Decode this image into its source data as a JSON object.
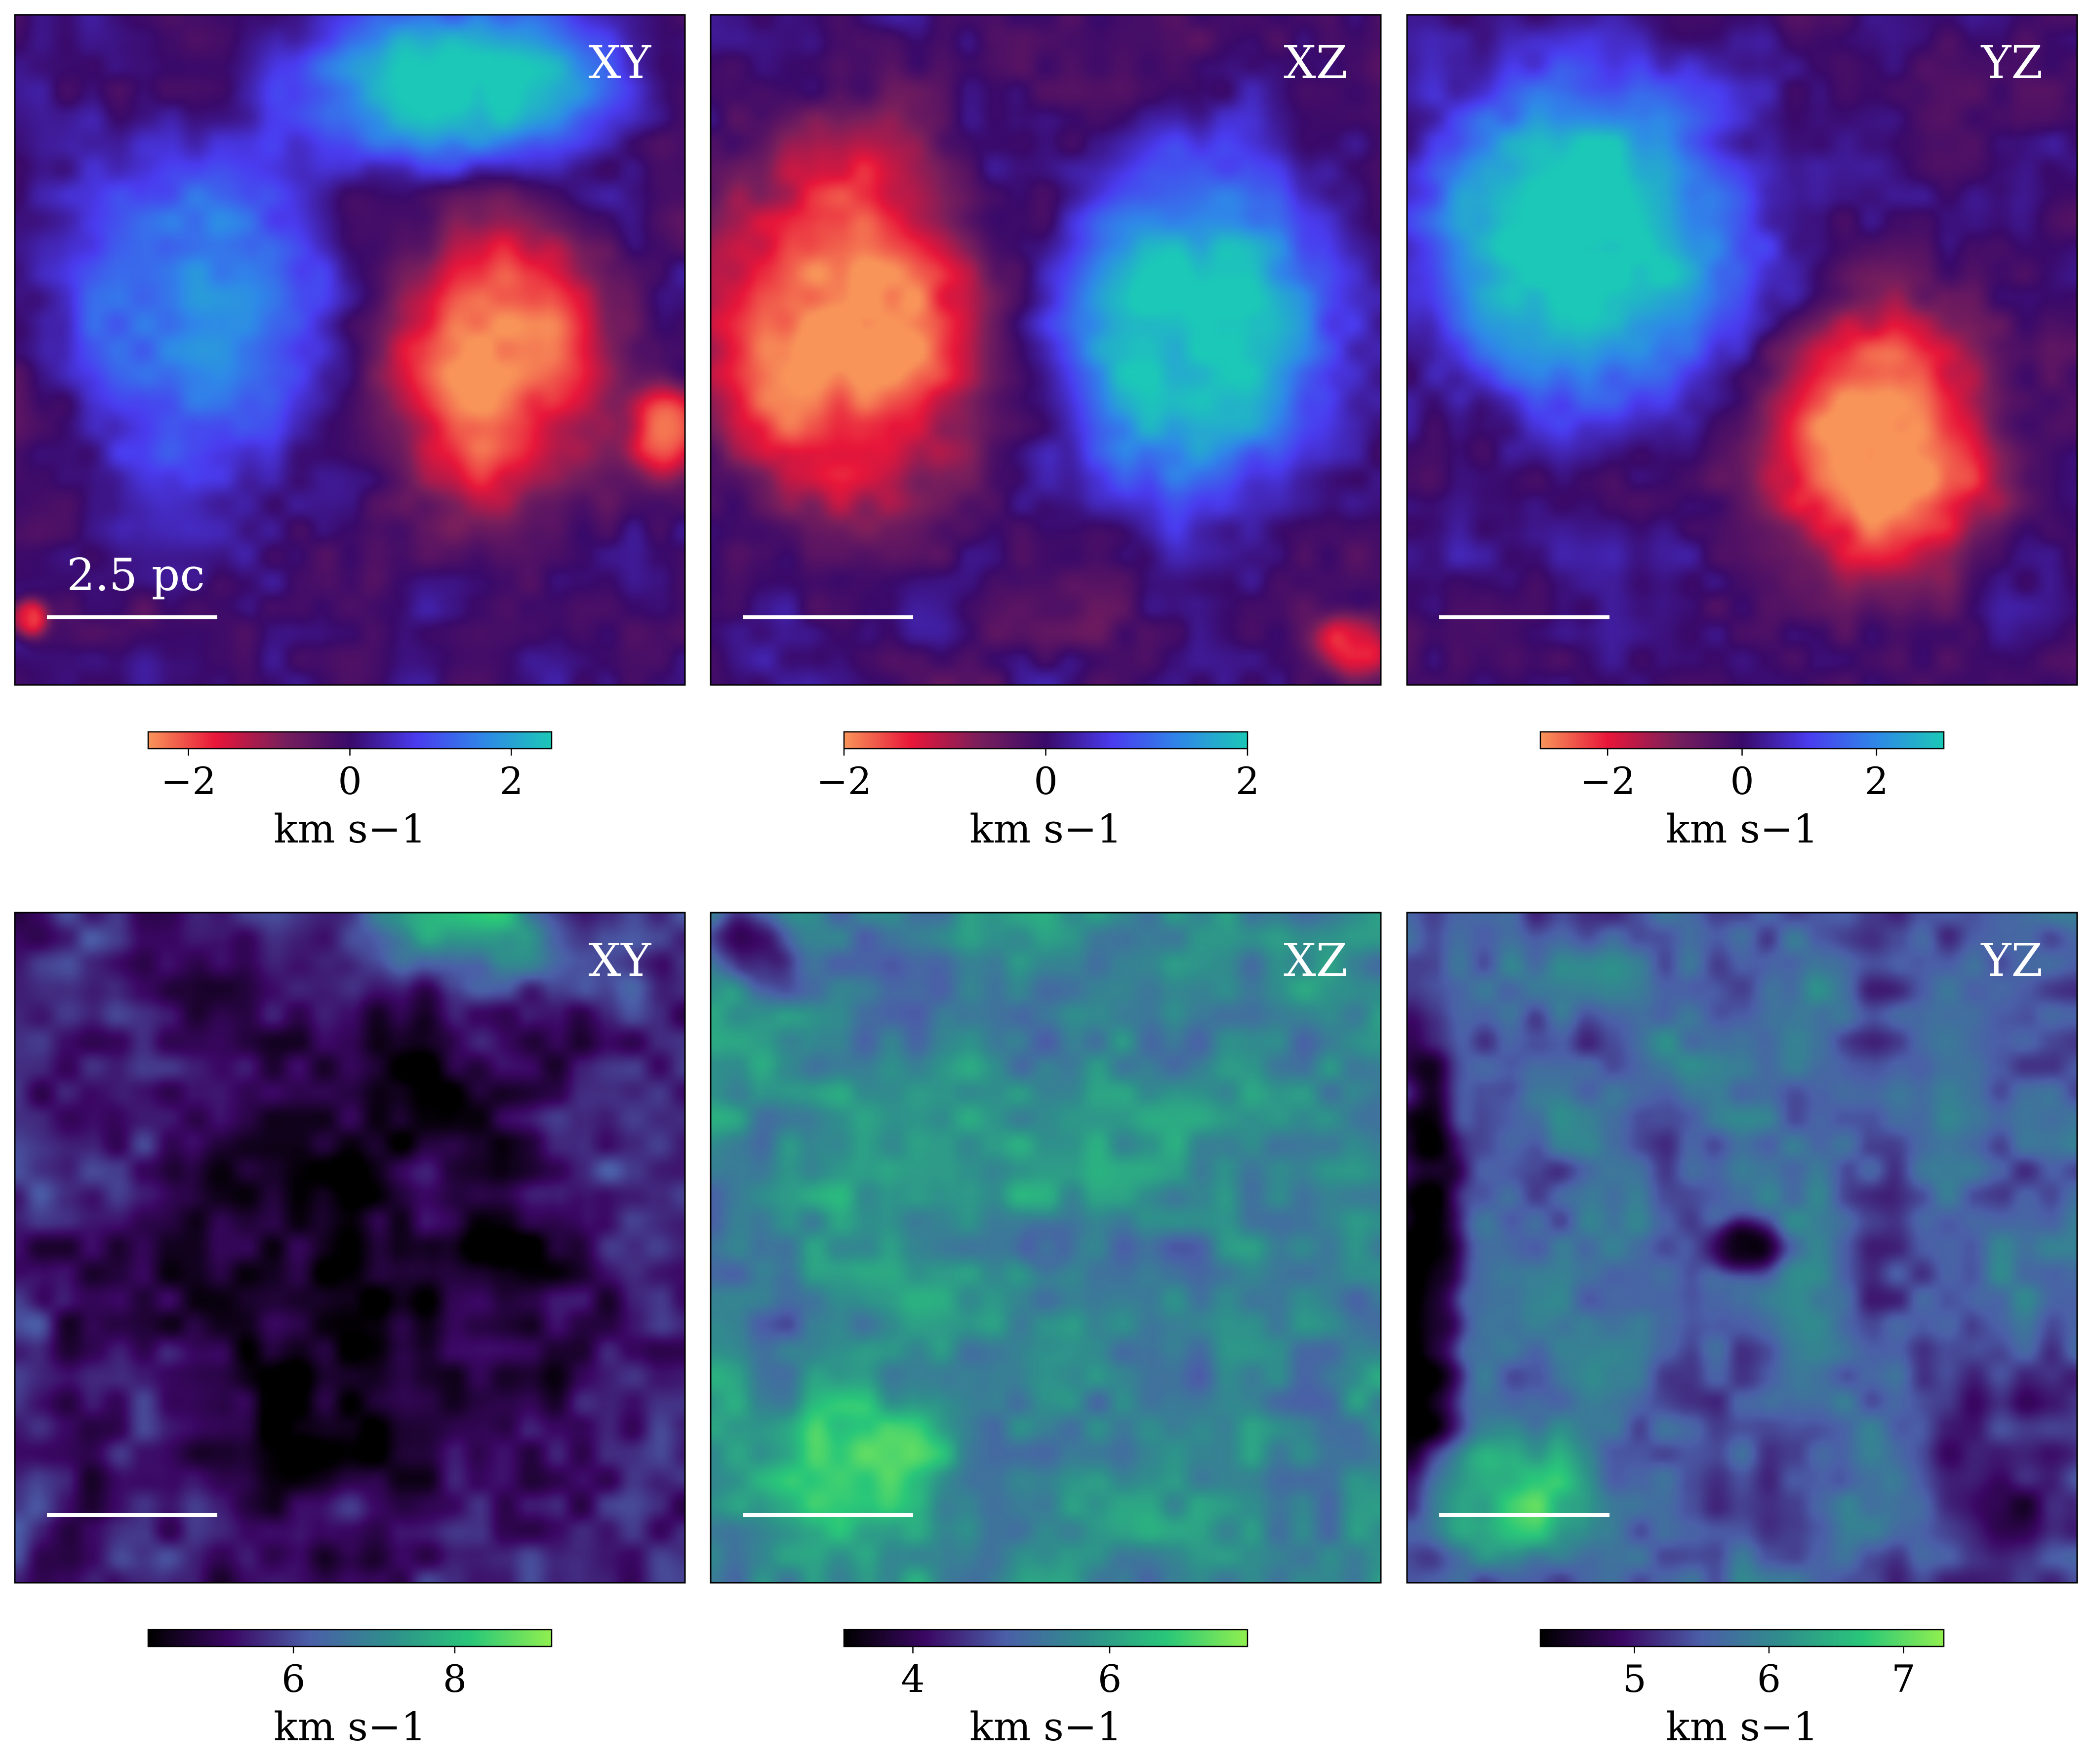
{
  "scale_bar_label": "2.5 pc",
  "chart_data": [
    {
      "type": "heatmap",
      "row": 0,
      "col": 0,
      "projection": "XY",
      "colormap": "diverging",
      "colors": [
        "#f8945a",
        "#e8163a",
        "#7a1f5c",
        "#3a0a6a",
        "#4a3cf0",
        "#2f88e8",
        "#1cc8b8"
      ],
      "clim": [
        -2.5,
        2.5
      ],
      "ticks": [
        -2,
        0,
        2
      ],
      "tick_labels": [
        "−2",
        "0",
        "2"
      ],
      "colorbar_label": "km s−1",
      "scale_bar": true,
      "scale_bar_text": true,
      "blobs": [
        {
          "x": 0.27,
          "y": 0.55,
          "rx": 0.19,
          "ry": 0.29,
          "value": 1.5
        },
        {
          "x": 0.72,
          "y": 0.48,
          "rx": 0.17,
          "ry": 0.23,
          "value": -2.3
        },
        {
          "x": 0.66,
          "y": 0.9,
          "rx": 0.24,
          "ry": 0.12,
          "value": 2.5
        },
        {
          "x": 0.97,
          "y": 0.38,
          "rx": 0.06,
          "ry": 0.07,
          "value": -2.0
        },
        {
          "x": 0.02,
          "y": 0.1,
          "rx": 0.03,
          "ry": 0.03,
          "value": -2.0
        }
      ]
    },
    {
      "type": "heatmap",
      "row": 0,
      "col": 1,
      "projection": "XZ",
      "colormap": "diverging",
      "colors": [
        "#f8945a",
        "#e8163a",
        "#7a1f5c",
        "#3a0a6a",
        "#4a3cf0",
        "#2f88e8",
        "#1cc8b8"
      ],
      "clim": [
        -2.0,
        2.0
      ],
      "ticks": [
        -2,
        0,
        2
      ],
      "tick_labels": [
        "−2",
        "0",
        "2"
      ],
      "colorbar_label": "km s−1",
      "scale_bar": true,
      "scale_bar_text": false,
      "blobs": [
        {
          "x": 0.2,
          "y": 0.53,
          "rx": 0.21,
          "ry": 0.29,
          "value": -2.0
        },
        {
          "x": 0.72,
          "y": 0.53,
          "rx": 0.2,
          "ry": 0.25,
          "value": 2.0
        },
        {
          "x": 0.96,
          "y": 0.06,
          "rx": 0.06,
          "ry": 0.05,
          "value": -1.5
        },
        {
          "x": 0.5,
          "y": 0.1,
          "rx": 0.1,
          "ry": 0.06,
          "value": -0.4
        }
      ]
    },
    {
      "type": "heatmap",
      "row": 0,
      "col": 2,
      "projection": "YZ",
      "colormap": "diverging",
      "colors": [
        "#f8945a",
        "#e8163a",
        "#7a1f5c",
        "#3a0a6a",
        "#4a3cf0",
        "#2f88e8",
        "#1cc8b8"
      ],
      "clim": [
        -3.0,
        3.0
      ],
      "ticks": [
        -2,
        0,
        2
      ],
      "tick_labels": [
        "−2",
        "0",
        "2"
      ],
      "colorbar_label": "km s−1",
      "scale_bar": true,
      "scale_bar_text": false,
      "blobs": [
        {
          "x": 0.27,
          "y": 0.67,
          "rx": 0.25,
          "ry": 0.26,
          "value": 3.0
        },
        {
          "x": 0.71,
          "y": 0.35,
          "rx": 0.18,
          "ry": 0.21,
          "value": -3.0
        }
      ]
    },
    {
      "type": "heatmap",
      "row": 1,
      "col": 0,
      "projection": "XY",
      "colormap": "sequential",
      "colors": [
        "#000000",
        "#3b0764",
        "#4b5fa8",
        "#2f8f8c",
        "#29c77a",
        "#90ef50"
      ],
      "clim": [
        4.2,
        9.2
      ],
      "ticks": [
        6,
        8
      ],
      "tick_labels": [
        "6",
        "8"
      ],
      "colorbar_label": "km s−1",
      "scale_bar": true,
      "scale_bar_text": false,
      "background": 5.7,
      "blobs": [
        {
          "x": 0.66,
          "y": 0.96,
          "rx": 0.16,
          "ry": 0.1,
          "value": 9.2
        },
        {
          "x": 0.52,
          "y": 0.45,
          "rx": 0.4,
          "ry": 0.55,
          "value": 4.6
        },
        {
          "x": 0.5,
          "y": 0.5,
          "rx": 0.05,
          "ry": 0.05,
          "value": 4.2
        }
      ]
    },
    {
      "type": "heatmap",
      "row": 1,
      "col": 1,
      "projection": "XZ",
      "colormap": "sequential",
      "colors": [
        "#000000",
        "#3b0764",
        "#4b5fa8",
        "#2f8f8c",
        "#29c77a",
        "#90ef50"
      ],
      "clim": [
        3.3,
        7.4
      ],
      "ticks": [
        4,
        6
      ],
      "tick_labels": [
        "4",
        "6"
      ],
      "colorbar_label": "km s−1",
      "scale_bar": true,
      "scale_bar_text": false,
      "background": 5.6,
      "blobs": [
        {
          "x": 0.2,
          "y": 0.18,
          "rx": 0.16,
          "ry": 0.12,
          "value": 6.6
        },
        {
          "x": 0.06,
          "y": 0.95,
          "rx": 0.06,
          "ry": 0.06,
          "value": 4.3
        },
        {
          "x": 0.5,
          "y": 0.5,
          "rx": 0.04,
          "ry": 0.04,
          "value": 4.9
        }
      ]
    },
    {
      "type": "heatmap",
      "row": 1,
      "col": 2,
      "projection": "YZ",
      "colormap": "sequential",
      "colors": [
        "#000000",
        "#3b0764",
        "#4b5fa8",
        "#2f8f8c",
        "#29c77a",
        "#90ef50"
      ],
      "clim": [
        4.3,
        7.3
      ],
      "ticks": [
        5,
        6,
        7
      ],
      "tick_labels": [
        "5",
        "6",
        "7"
      ],
      "colorbar_label": "km s−1",
      "scale_bar": true,
      "scale_bar_text": false,
      "background": 5.6,
      "blobs": [
        {
          "x": 0.03,
          "y": 0.45,
          "rx": 0.06,
          "ry": 0.35,
          "value": 4.3
        },
        {
          "x": 0.5,
          "y": 0.5,
          "rx": 0.06,
          "ry": 0.04,
          "value": 4.4
        },
        {
          "x": 0.88,
          "y": 0.2,
          "rx": 0.14,
          "ry": 0.16,
          "value": 4.9
        },
        {
          "x": 0.15,
          "y": 0.12,
          "rx": 0.14,
          "ry": 0.1,
          "value": 6.5
        }
      ]
    }
  ]
}
